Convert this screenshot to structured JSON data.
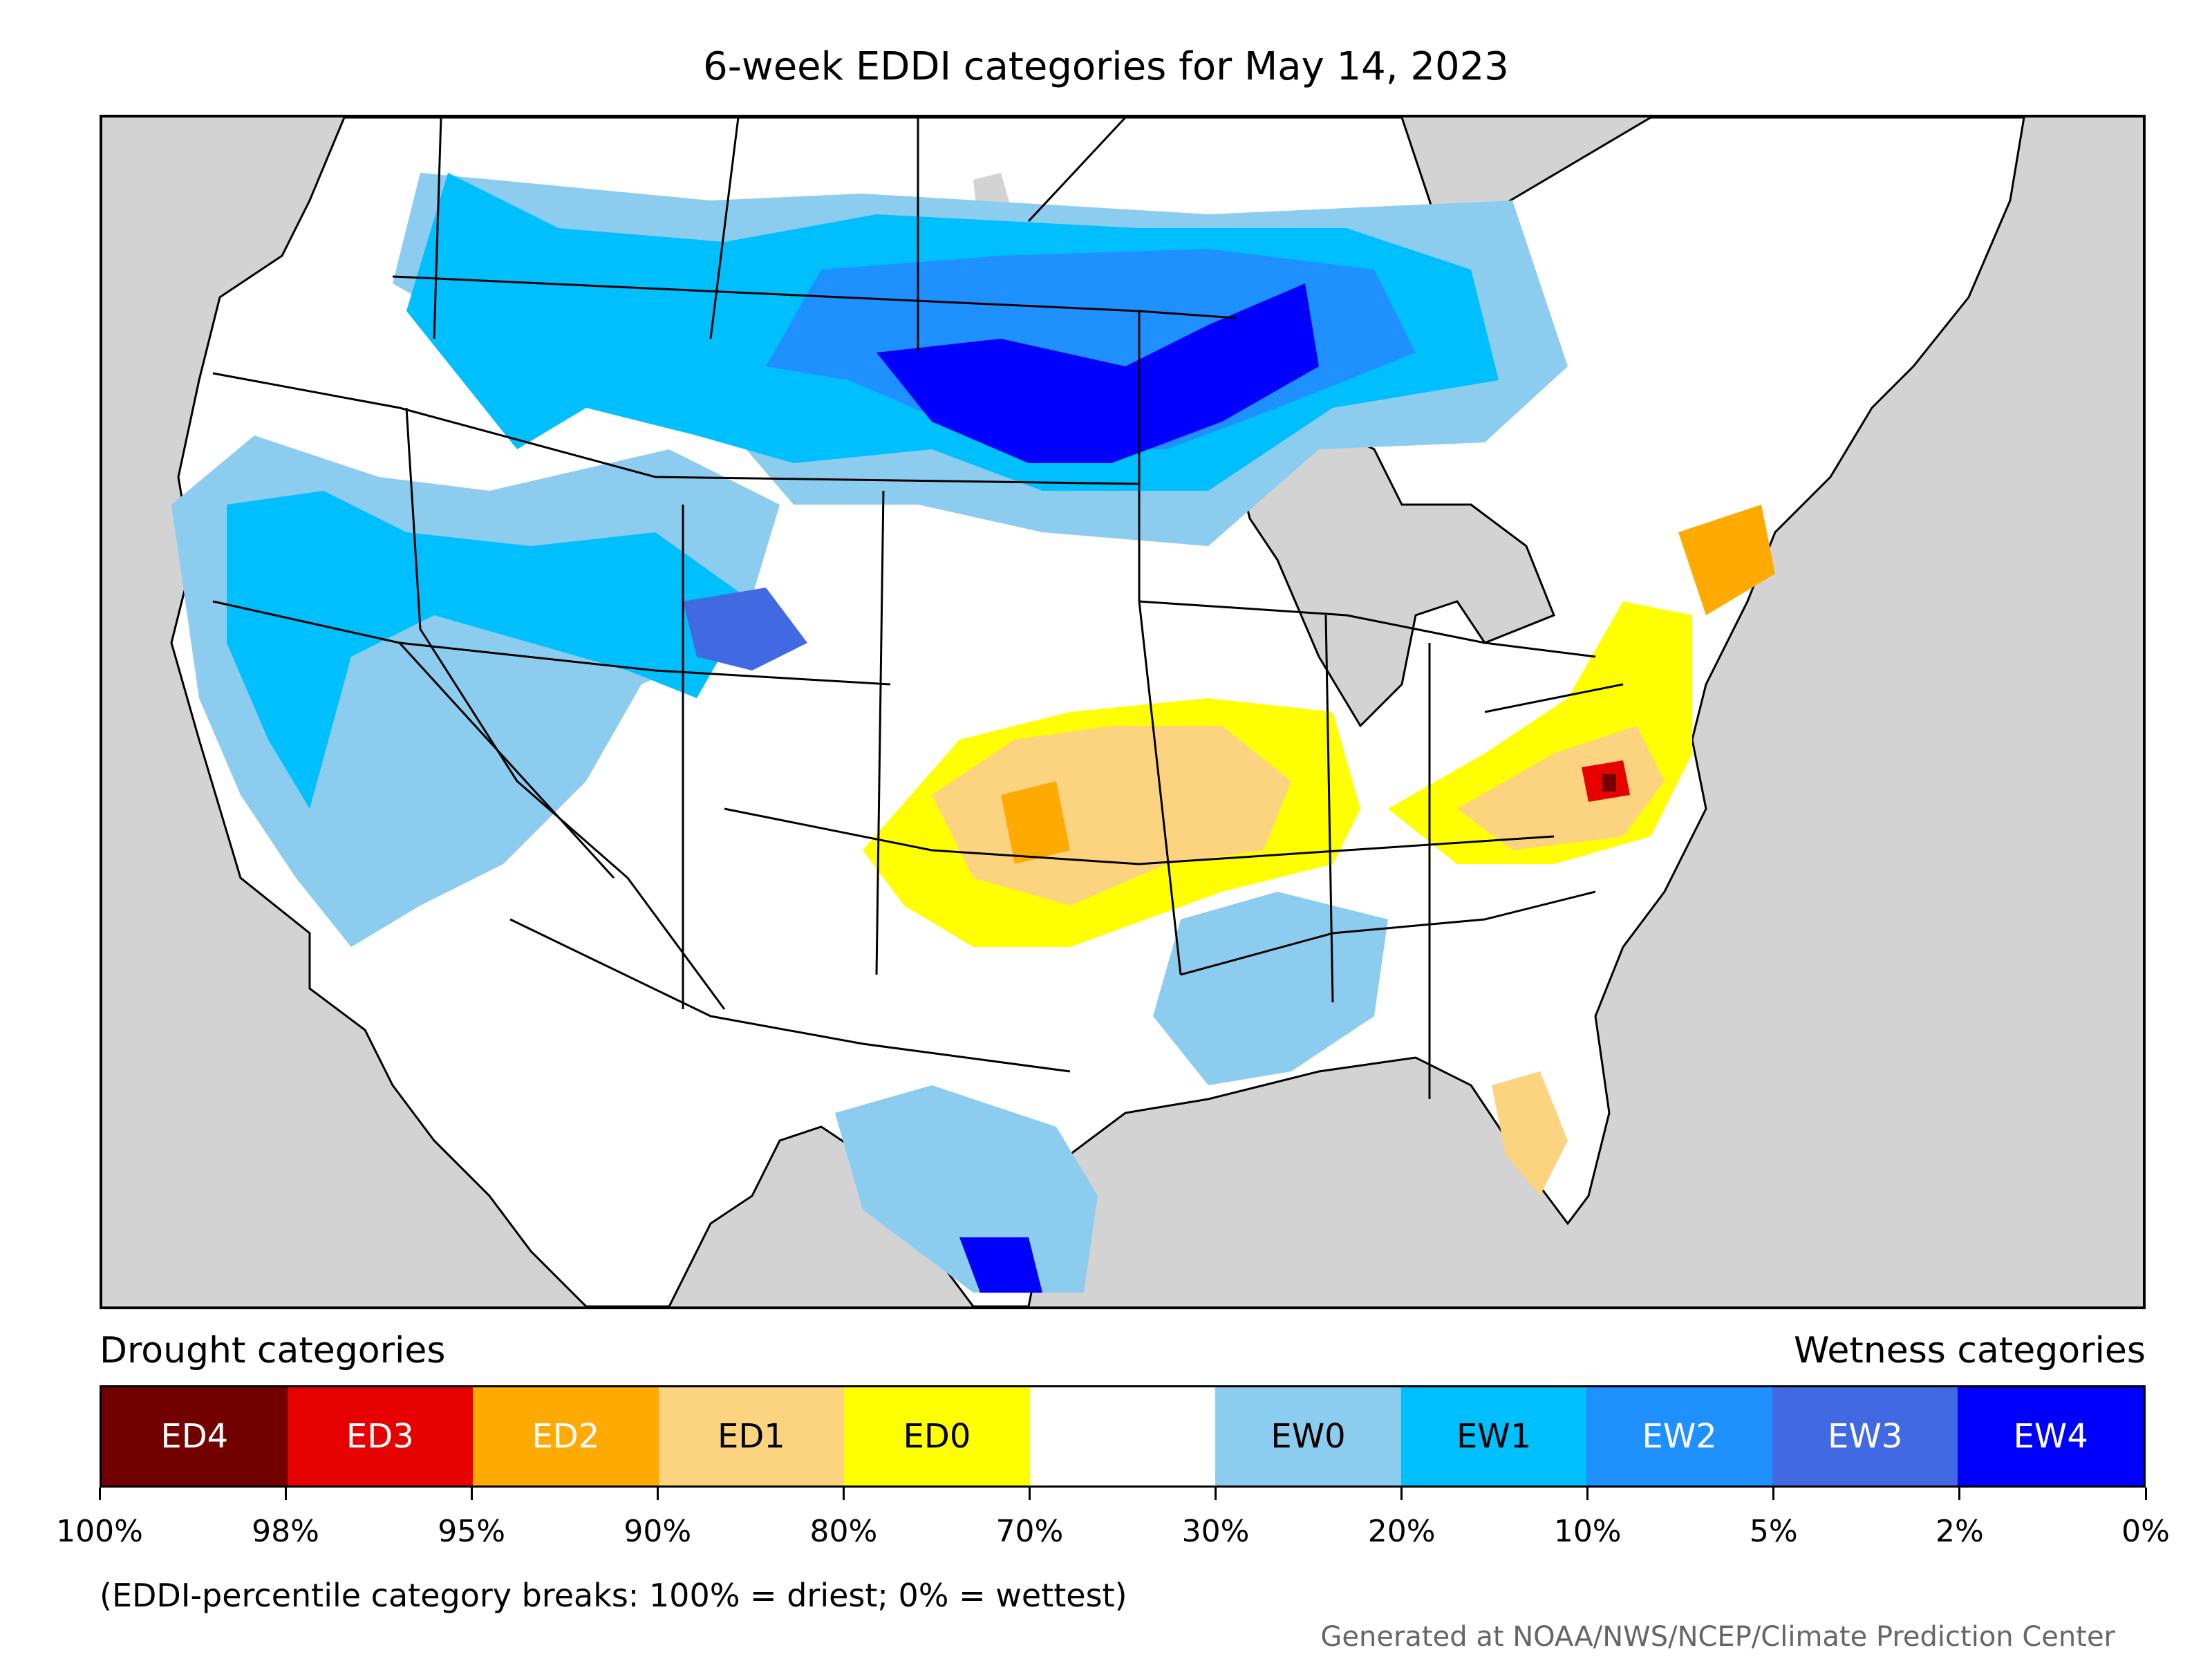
{
  "title": "6-week EDDI categories for May 14, 2023",
  "legend": {
    "drought_heading": "Drought categories",
    "wetness_heading": "Wetness categories",
    "categories": [
      {
        "label": "ED4",
        "color": "#730000",
        "text_color": "#ffffff"
      },
      {
        "label": "ED3",
        "color": "#e60000",
        "text_color": "#ffffff"
      },
      {
        "label": "ED2",
        "color": "#ffaa00",
        "text_color": "#ffffff"
      },
      {
        "label": "ED1",
        "color": "#fcd37f",
        "text_color": "#000000"
      },
      {
        "label": "ED0",
        "color": "#ffff00",
        "text_color": "#000000"
      },
      {
        "label": "",
        "color": "#ffffff",
        "text_color": "#000000"
      },
      {
        "label": "EW0",
        "color": "#8ccdef",
        "text_color": "#000000"
      },
      {
        "label": "EW1",
        "color": "#00bfff",
        "text_color": "#000000"
      },
      {
        "label": "EW2",
        "color": "#1e90ff",
        "text_color": "#ffffff"
      },
      {
        "label": "EW3",
        "color": "#4169e1",
        "text_color": "#ffffff"
      },
      {
        "label": "EW4",
        "color": "#0000ff",
        "text_color": "#ffffff"
      }
    ],
    "tick_labels": [
      "100%",
      "98%",
      "95%",
      "90%",
      "80%",
      "70%",
      "30%",
      "20%",
      "10%",
      "5%",
      "2%",
      "0%"
    ],
    "note": "(EDDI-percentile category breaks: 100% = driest; 0% = wettest)"
  },
  "credit": "Generated at NOAA/NWS/NCEP/Climate Prediction Center",
  "map": {
    "background_color": "#d3d3d3",
    "land_color": "#ffffff"
  }
}
